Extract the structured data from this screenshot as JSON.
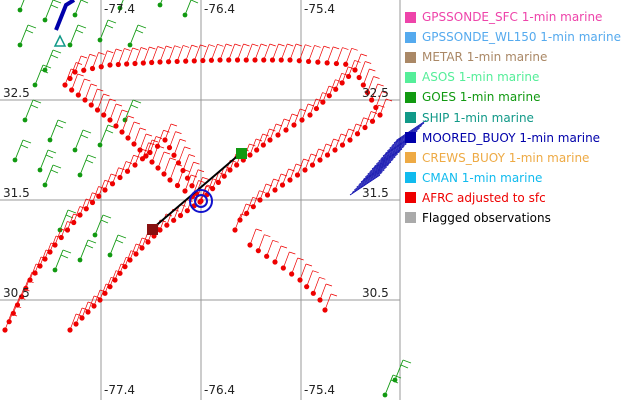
{
  "map": {
    "lon_labels_top": [
      "-77.4",
      "-76.4",
      "-75.4"
    ],
    "lon_labels_bottom": [
      "-77.4",
      "-76.4",
      "-75.4"
    ],
    "lat_labels_left": [
      "32.5",
      "31.5",
      "30.5"
    ],
    "lat_labels_right": [
      "32.5",
      "31.5",
      "30.5"
    ]
  },
  "legend": {
    "items": [
      {
        "label": "GPSSONDE_SFC 1-min marine",
        "color": "#ee44aa"
      },
      {
        "label": "GPSSONDE_WL150 1-min marine",
        "color": "#55aaee"
      },
      {
        "label": "METAR 1-min marine",
        "color": "#aa8866"
      },
      {
        "label": "ASOS 1-min marine",
        "color": "#55ee99"
      },
      {
        "label": "GOES 1-min marine",
        "color": "#119911"
      },
      {
        "label": "SHIP 1-min marine",
        "color": "#119988"
      },
      {
        "label": "MOORED_BUOY 1-min marine",
        "color": "#0000aa"
      },
      {
        "label": "CREWS_BUOY 1-min marine",
        "color": "#eeaa44"
      },
      {
        "label": "CMAN 1-min marine",
        "color": "#11bbee"
      },
      {
        "label": "AFRC adjusted to sfc",
        "color": "#ee0000"
      },
      {
        "label": "Flagged observations",
        "color": "#aaaaaa"
      }
    ]
  }
}
